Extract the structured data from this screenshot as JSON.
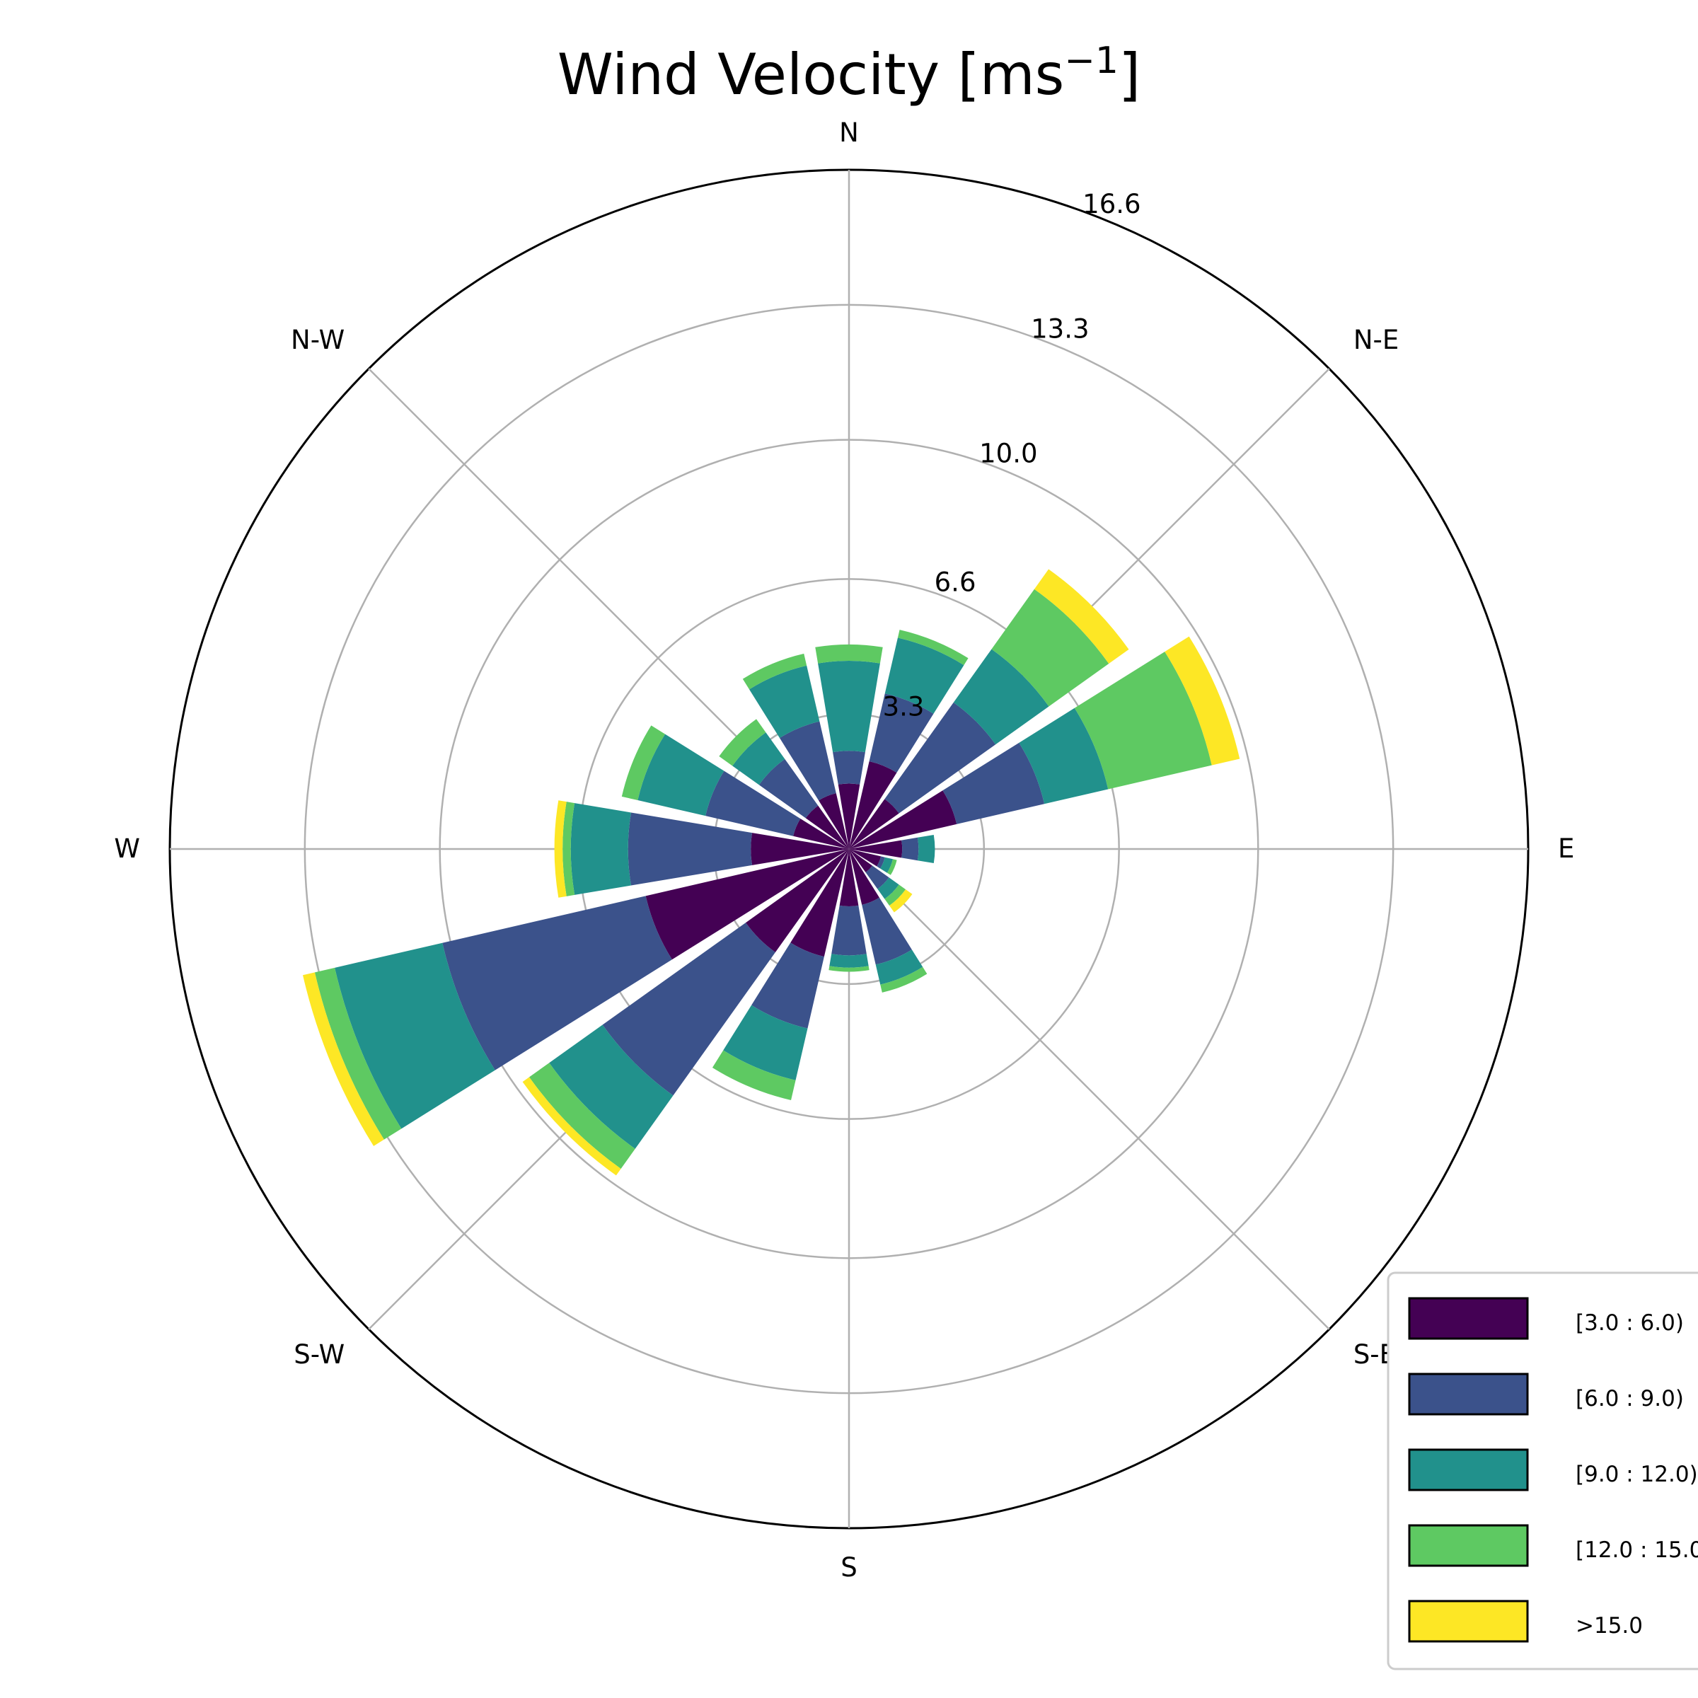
{
  "chart_data": {
    "type": "windrose",
    "title": "Wind Velocity [ms",
    "title_sup": "−1",
    "title_close": "]",
    "directions": [
      {
        "label": "N"
      },
      {
        "label": "N-E"
      },
      {
        "label": "E"
      },
      {
        "label": "S-E"
      },
      {
        "label": "S"
      },
      {
        "label": "S-W"
      },
      {
        "label": "W"
      },
      {
        "label": "N-W"
      }
    ],
    "radial_ticks": [
      {
        "value": 3.3,
        "label": "3.3"
      },
      {
        "value": 6.6,
        "label": "6.6"
      },
      {
        "value": 10.0,
        "label": "10.0"
      },
      {
        "value": 13.3,
        "label": "13.3"
      },
      {
        "value": 16.6,
        "label": "16.6"
      }
    ],
    "rmax": 16.6,
    "grid": true,
    "legend_position": "bottom-right",
    "bins": [
      {
        "label": "[3.0 : 6.0)",
        "color": "#440154"
      },
      {
        "label": "[6.0 : 9.0)",
        "color": "#3b528b"
      },
      {
        "label": "[9.0 : 12.0)",
        "color": "#21918c"
      },
      {
        "label": "[12.0 : 15.0)",
        "color": "#5ec962"
      },
      {
        "label": ">15.0",
        "color": "#fde725"
      }
    ],
    "sectors": [
      {
        "angle": 0,
        "stack": [
          1.6,
          2.4,
          4.6,
          5.0,
          5.0
        ]
      },
      {
        "angle": 22.5,
        "stack": [
          2.2,
          3.9,
          5.3,
          5.5,
          5.5
        ]
      },
      {
        "angle": 45,
        "stack": [
          1.5,
          4.4,
          6.0,
          7.8,
          8.4
        ]
      },
      {
        "angle": 67.5,
        "stack": [
          2.7,
          4.9,
          6.5,
          9.1,
          9.8
        ]
      },
      {
        "angle": 90,
        "stack": [
          1.3,
          1.7,
          2.1,
          2.1,
          2.1
        ]
      },
      {
        "angle": 112.5,
        "stack": [
          0.8,
          0.9,
          1.1,
          1.2,
          1.2
        ]
      },
      {
        "angle": 135,
        "stack": [
          0.7,
          1.2,
          1.5,
          1.7,
          1.9
        ]
      },
      {
        "angle": 157.5,
        "stack": [
          1.4,
          2.9,
          3.4,
          3.6,
          3.6
        ]
      },
      {
        "angle": 180,
        "stack": [
          1.4,
          2.6,
          2.9,
          3.0,
          3.0
        ]
      },
      {
        "angle": 202.5,
        "stack": [
          2.7,
          4.5,
          5.8,
          6.3,
          6.3
        ]
      },
      {
        "angle": 225,
        "stack": [
          3.1,
          7.4,
          9.0,
          9.6,
          9.8
        ]
      },
      {
        "angle": 247.5,
        "stack": [
          5.1,
          10.2,
          12.9,
          13.4,
          13.7
        ]
      },
      {
        "angle": 270,
        "stack": [
          2.4,
          5.4,
          6.8,
          7.0,
          7.2
        ]
      },
      {
        "angle": 292.5,
        "stack": [
          1.4,
          3.6,
          5.3,
          5.7,
          5.7
        ]
      },
      {
        "angle": 315,
        "stack": [
          1.3,
          2.7,
          3.5,
          3.9,
          3.9
        ]
      },
      {
        "angle": 337.5,
        "stack": [
          1.4,
          3.2,
          4.6,
          4.9,
          4.9
        ]
      }
    ]
  }
}
